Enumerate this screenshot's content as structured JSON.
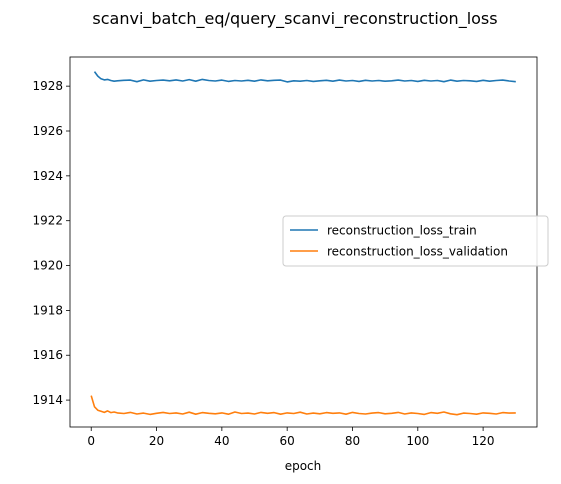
{
  "figure_title": "scanvi_batch_eq/query_scanvi_reconstruction_loss",
  "chart_data": {
    "type": "line",
    "title": "scanvi_batch_eq/query_scanvi_reconstruction_loss",
    "xlabel": "epoch",
    "ylabel": "",
    "xlim": [
      -6.5,
      136.5
    ],
    "ylim": [
      1912.8,
      1929.3
    ],
    "xticks": [
      0,
      20,
      40,
      60,
      80,
      100,
      120
    ],
    "yticks": [
      1914,
      1916,
      1918,
      1920,
      1922,
      1924,
      1926,
      1928
    ],
    "grid": false,
    "legend": {
      "location": "center-right"
    },
    "series": [
      {
        "name": "reconstruction_loss_train",
        "color": "#1f77b4",
        "x": [
          1,
          2,
          3,
          4,
          5,
          6,
          7,
          8,
          10,
          12,
          14,
          16,
          18,
          20,
          22,
          24,
          26,
          28,
          30,
          32,
          34,
          36,
          38,
          40,
          42,
          44,
          46,
          48,
          50,
          52,
          54,
          56,
          58,
          60,
          62,
          64,
          66,
          68,
          70,
          72,
          74,
          76,
          78,
          80,
          82,
          84,
          86,
          88,
          90,
          92,
          94,
          96,
          98,
          100,
          102,
          104,
          106,
          108,
          110,
          112,
          114,
          116,
          118,
          120,
          122,
          124,
          126,
          128,
          130
        ],
        "values": [
          1928.65,
          1928.45,
          1928.33,
          1928.28,
          1928.3,
          1928.25,
          1928.22,
          1928.24,
          1928.26,
          1928.27,
          1928.2,
          1928.28,
          1928.22,
          1928.25,
          1928.27,
          1928.24,
          1928.28,
          1928.23,
          1928.29,
          1928.22,
          1928.3,
          1928.25,
          1928.23,
          1928.27,
          1928.21,
          1928.25,
          1928.23,
          1928.26,
          1928.22,
          1928.28,
          1928.24,
          1928.26,
          1928.27,
          1928.19,
          1928.24,
          1928.22,
          1928.25,
          1928.21,
          1928.24,
          1928.26,
          1928.22,
          1928.27,
          1928.23,
          1928.25,
          1928.21,
          1928.26,
          1928.23,
          1928.25,
          1928.22,
          1928.24,
          1928.27,
          1928.23,
          1928.25,
          1928.21,
          1928.26,
          1928.23,
          1928.25,
          1928.2,
          1928.27,
          1928.22,
          1928.25,
          1928.24,
          1928.21,
          1928.26,
          1928.22,
          1928.25,
          1928.27,
          1928.23,
          1928.2
        ]
      },
      {
        "name": "reconstruction_loss_validation",
        "color": "#ff7f0e",
        "x": [
          0,
          1,
          2,
          3,
          4,
          5,
          6,
          7,
          8,
          10,
          12,
          14,
          16,
          18,
          20,
          22,
          24,
          26,
          28,
          30,
          32,
          34,
          36,
          38,
          40,
          42,
          44,
          46,
          48,
          50,
          52,
          54,
          56,
          58,
          60,
          62,
          64,
          66,
          68,
          70,
          72,
          74,
          76,
          78,
          80,
          82,
          84,
          86,
          88,
          90,
          92,
          94,
          96,
          98,
          100,
          102,
          104,
          106,
          108,
          110,
          112,
          114,
          116,
          118,
          120,
          122,
          124,
          126,
          128,
          130
        ],
        "values": [
          1914.2,
          1913.7,
          1913.55,
          1913.5,
          1913.45,
          1913.52,
          1913.44,
          1913.47,
          1913.43,
          1913.4,
          1913.45,
          1913.38,
          1913.42,
          1913.36,
          1913.41,
          1913.45,
          1913.4,
          1913.43,
          1913.38,
          1913.46,
          1913.37,
          1913.44,
          1913.41,
          1913.39,
          1913.43,
          1913.37,
          1913.47,
          1913.4,
          1913.42,
          1913.38,
          1913.45,
          1913.41,
          1913.44,
          1913.37,
          1913.43,
          1913.4,
          1913.46,
          1913.38,
          1913.42,
          1913.39,
          1913.44,
          1913.41,
          1913.43,
          1913.37,
          1913.45,
          1913.4,
          1913.38,
          1913.42,
          1913.44,
          1913.39,
          1913.41,
          1913.45,
          1913.38,
          1913.43,
          1913.4,
          1913.36,
          1913.44,
          1913.41,
          1913.47,
          1913.39,
          1913.35,
          1913.42,
          1913.4,
          1913.37,
          1913.43,
          1913.41,
          1913.38,
          1913.44,
          1913.42,
          1913.43
        ]
      }
    ]
  }
}
